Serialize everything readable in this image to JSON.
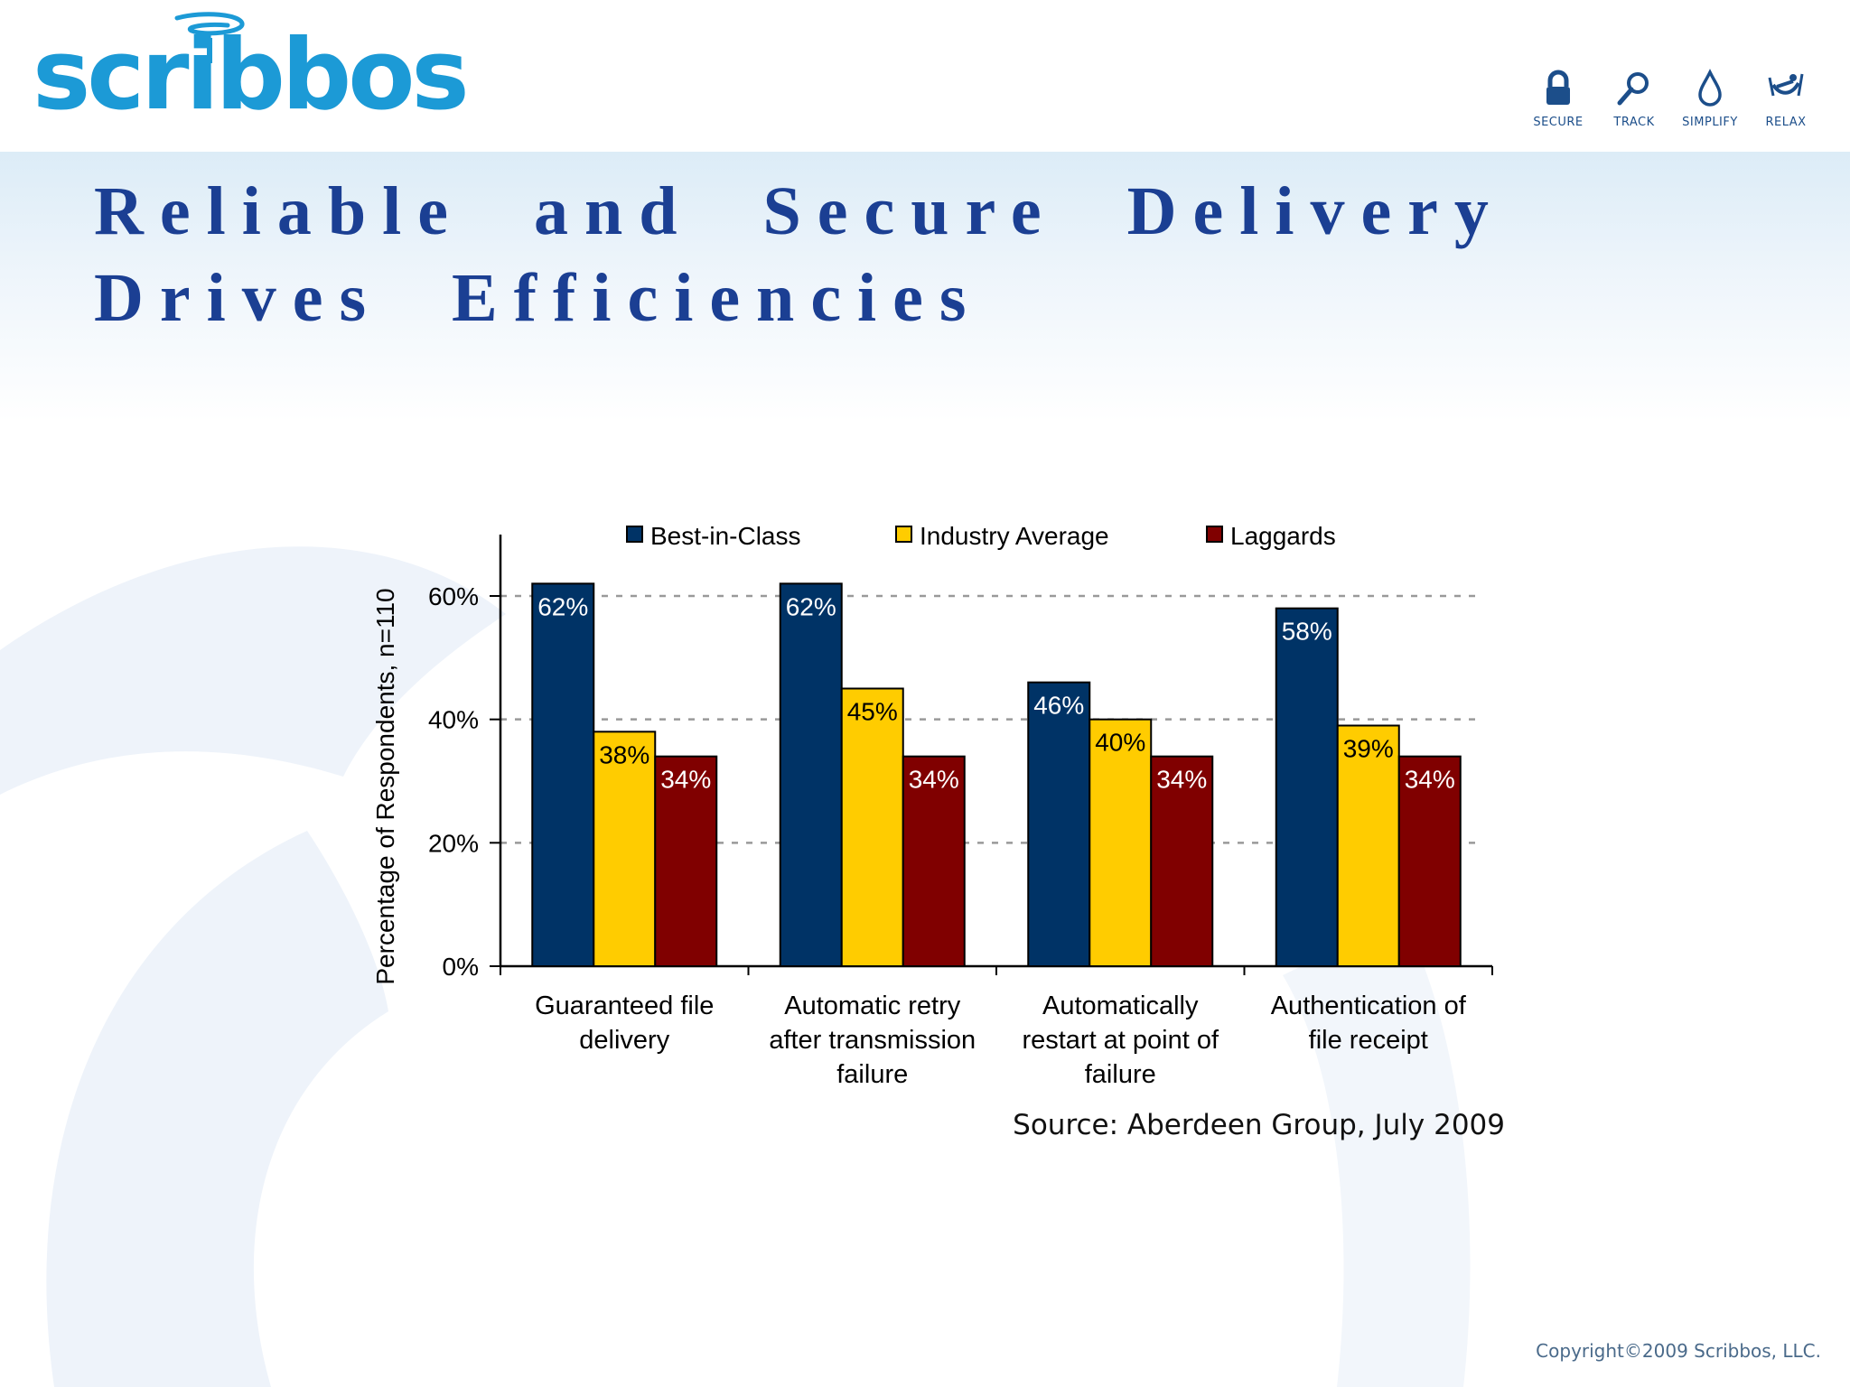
{
  "brand": {
    "logo_text": "scribbos",
    "logo_color": "#1c9ad6",
    "nav": [
      {
        "label": "SECURE",
        "icon": "lock-icon"
      },
      {
        "label": "TRACK",
        "icon": "magnifier-icon"
      },
      {
        "label": "SIMPLIFY",
        "icon": "droplet-icon"
      },
      {
        "label": "RELAX",
        "icon": "hammock-icon"
      }
    ],
    "nav_color": "#1c4e8a"
  },
  "title": {
    "line1": "Reliable and Secure Delivery",
    "line2": "Drives Efficiencies",
    "color": "#1b3f93"
  },
  "chart_data": {
    "type": "bar",
    "title": "",
    "xlabel": "",
    "ylabel": "Percentage of Respondents, n=110",
    "ylim": [
      0,
      70
    ],
    "yticks": [
      0,
      20,
      40,
      60
    ],
    "ytick_labels": [
      "0%",
      "20%",
      "40%",
      "60%"
    ],
    "grid": "dashed horizontal at 20%, 40%, 60%",
    "legend_position": "top",
    "categories": [
      [
        "Guaranteed file",
        "delivery"
      ],
      [
        "Automatic retry",
        "after transmission",
        "failure"
      ],
      [
        "Automatically",
        "restart at point of",
        "failure"
      ],
      [
        "Authentication of",
        "file receipt"
      ]
    ],
    "series": [
      {
        "name": "Best-in-Class",
        "color": "#003366",
        "label_color": "#ffffff",
        "values": [
          62,
          62,
          46,
          58
        ],
        "labels": [
          "62%",
          "62%",
          "46%",
          "58%"
        ]
      },
      {
        "name": "Industry Average",
        "color": "#ffcc00",
        "label_color": "#000000",
        "values": [
          38,
          45,
          40,
          39
        ],
        "labels": [
          "38%",
          "45%",
          "40%",
          "39%"
        ]
      },
      {
        "name": "Laggards",
        "color": "#800000",
        "label_color": "#ffffff",
        "values": [
          34,
          34,
          34,
          34
        ],
        "labels": [
          "34%",
          "34%",
          "34%",
          "34%"
        ]
      }
    ]
  },
  "source": "Source: Aberdeen Group, July 2009",
  "copyright": "Copyright©2009 Scribbos, LLC."
}
